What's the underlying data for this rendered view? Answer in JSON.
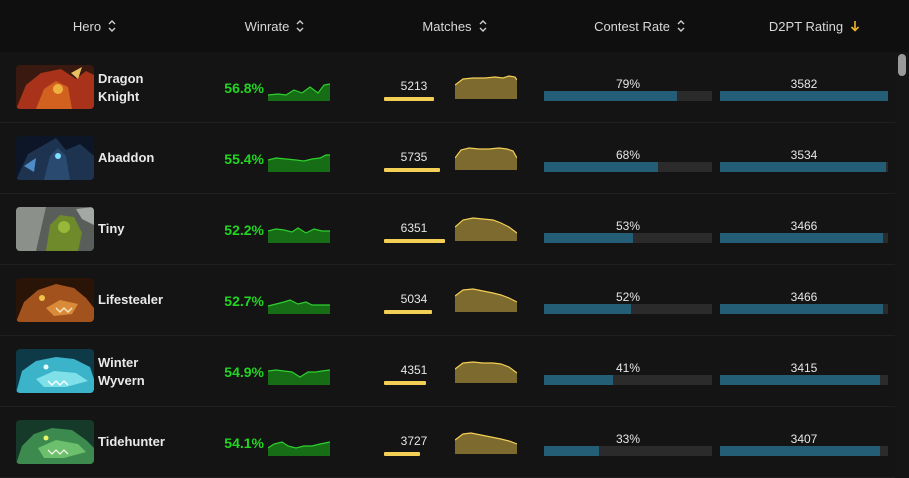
{
  "header": {
    "hero": "Hero",
    "winrate": "Winrate",
    "matches": "Matches",
    "contest_rate": "Contest Rate",
    "rating": "D2PT Rating"
  },
  "colors": {
    "winrate_green": "#22d522",
    "matches_gold": "#f4cf55",
    "bar_teal": "#235e76",
    "sort_active": "#f0b429"
  },
  "rows": [
    {
      "hero": "Dragon Knight",
      "winrate": "56.8%",
      "matches": "5213",
      "matches_level": 0.82,
      "contest": "79%",
      "contest_value": 0.79,
      "rating": "3582",
      "rating_level": 1.0
    },
    {
      "hero": "Abaddon",
      "winrate": "55.4%",
      "matches": "5735",
      "matches_level": 0.9,
      "contest": "68%",
      "contest_value": 0.68,
      "rating": "3534",
      "rating_level": 0.99
    },
    {
      "hero": "Tiny",
      "winrate": "52.2%",
      "matches": "6351",
      "matches_level": 1.0,
      "contest": "53%",
      "contest_value": 0.53,
      "rating": "3466",
      "rating_level": 0.97
    },
    {
      "hero": "Lifestealer",
      "winrate": "52.7%",
      "matches": "5034",
      "matches_level": 0.79,
      "contest": "52%",
      "contest_value": 0.52,
      "rating": "3466",
      "rating_level": 0.97
    },
    {
      "hero": "Winter Wyvern",
      "winrate": "54.9%",
      "matches": "4351",
      "matches_level": 0.69,
      "contest": "41%",
      "contest_value": 0.41,
      "rating": "3415",
      "rating_level": 0.96
    },
    {
      "hero": "Tidehunter",
      "winrate": "54.1%",
      "matches": "3727",
      "matches_level": 0.59,
      "contest": "33%",
      "contest_value": 0.33,
      "rating": "3407",
      "rating_level": 0.95
    }
  ]
}
